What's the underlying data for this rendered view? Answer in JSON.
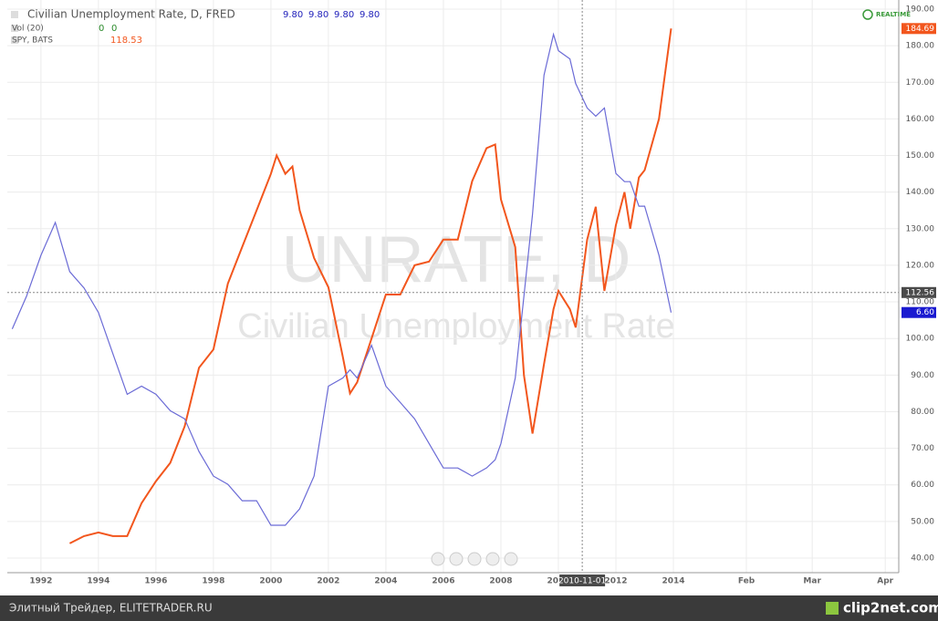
{
  "chart_data": {
    "type": "line",
    "x": [
      1991,
      1991.5,
      1992,
      1992.5,
      1993,
      1993.5,
      1994,
      1994.5,
      1995,
      1995.5,
      1996,
      1996.5,
      1997,
      1997.5,
      1998,
      1998.5,
      1999,
      1999.5,
      2000,
      2000.2,
      2000.5,
      2000.75,
      2001,
      2001.5,
      2002,
      2002.5,
      2002.75,
      2003,
      2003.5,
      2004,
      2004.5,
      2005,
      2005.5,
      2006,
      2006.5,
      2007,
      2007.5,
      2007.8,
      2008,
      2008.5,
      2008.8,
      2009.1,
      2009.5,
      2009.83,
      2010,
      2010.4,
      2010.6,
      2011,
      2011.3,
      2011.6,
      2012,
      2012.3,
      2012.5,
      2012.8,
      2013,
      2013.5,
      2013.92
    ],
    "series": [
      {
        "name": "SPY, BATS",
        "color": "#f2561d",
        "values": [
          null,
          null,
          null,
          null,
          44,
          46,
          47,
          46,
          46,
          55,
          61,
          66,
          76,
          92,
          97,
          115,
          125,
          135,
          145,
          150,
          145,
          147,
          135,
          122,
          114,
          95,
          85,
          88,
          100,
          112,
          112,
          120,
          121,
          127,
          127,
          143,
          152,
          153,
          138,
          125,
          90,
          74,
          93,
          108,
          113,
          108,
          103,
          127,
          136,
          113,
          131,
          140,
          130,
          144,
          146,
          160,
          184.69
        ]
      },
      {
        "name": "Civilian Unemployment Rate, D, FRED",
        "color": "#6b6bd6",
        "axis": "y2",
        "values": [
          6.4,
          6.8,
          7.3,
          7.7,
          7.1,
          6.9,
          6.6,
          6.1,
          5.6,
          5.7,
          5.6,
          5.4,
          5.3,
          4.9,
          4.6,
          4.5,
          4.3,
          4.3,
          4.0,
          4.0,
          4.0,
          4.1,
          4.2,
          4.6,
          5.7,
          5.8,
          5.9,
          5.8,
          6.2,
          5.7,
          5.5,
          5.3,
          5.0,
          4.7,
          4.7,
          4.6,
          4.7,
          4.8,
          5.0,
          5.8,
          6.8,
          7.8,
          9.5,
          10.0,
          9.8,
          9.7,
          9.4,
          9.1,
          9.0,
          9.1,
          8.3,
          8.2,
          8.2,
          7.9,
          7.9,
          7.3,
          6.6
        ]
      }
    ],
    "xlim": [
      1990.83,
      2021.84
    ],
    "xticks": [
      1992,
      1994,
      1996,
      1998,
      2000,
      2002,
      2004,
      2006,
      2008,
      2010,
      2012,
      2014,
      {
        "value": 2016.54,
        "label": "Feb"
      },
      {
        "value": 2018.83,
        "label": "Mar"
      },
      {
        "value": 2021.37,
        "label": "Apr"
      }
    ],
    "ylim": [
      36.01,
      192.49
    ],
    "yticks": [
      {
        "value": 40,
        "label": "40.00"
      },
      {
        "value": 50,
        "label": "50.00"
      },
      {
        "value": 60,
        "label": "60.00"
      },
      {
        "value": 70,
        "label": "70.00"
      },
      {
        "value": 80,
        "label": "80.00"
      },
      {
        "value": 90,
        "label": "90.00"
      },
      {
        "value": 100,
        "label": "100.00"
      },
      {
        "value": 110,
        "label": "110.00"
      },
      {
        "value": 120,
        "label": "120.00"
      },
      {
        "value": 130,
        "label": "130.00"
      },
      {
        "value": 140,
        "label": "140.00"
      },
      {
        "value": 150,
        "label": "150.00"
      },
      {
        "value": 160,
        "label": "160.00"
      },
      {
        "value": 170,
        "label": "170.00"
      },
      {
        "value": 180,
        "label": "180.00"
      },
      {
        "value": 190,
        "label": "190.00"
      }
    ],
    "y2lim": [
      3.42,
      10.42
    ],
    "grid": true,
    "legend": [
      {
        "name": "Civilian Unemployment Rate, D, FRED",
        "values": [
          "9.80",
          "9.80",
          "9.80",
          "9.80"
        ]
      },
      {
        "name": "Vol (20)",
        "values": [
          "0",
          "0"
        ]
      },
      {
        "name": "SPY, BATS",
        "values": [
          "118.53"
        ]
      }
    ],
    "price_tags": [
      "184.69",
      "6.60"
    ],
    "crosshair": {
      "x": 2010.83,
      "y": 112.56,
      "x_label": "2010-11-01",
      "y_label": "112.56"
    },
    "watermark": [
      "UNRATE, D",
      "Civilian Unemployment Rate"
    ],
    "realtime": "REALTIME"
  },
  "footer": {
    "left": "Элитный Трейдер, ELITETRADER.RU",
    "right": "clip2net.com"
  }
}
